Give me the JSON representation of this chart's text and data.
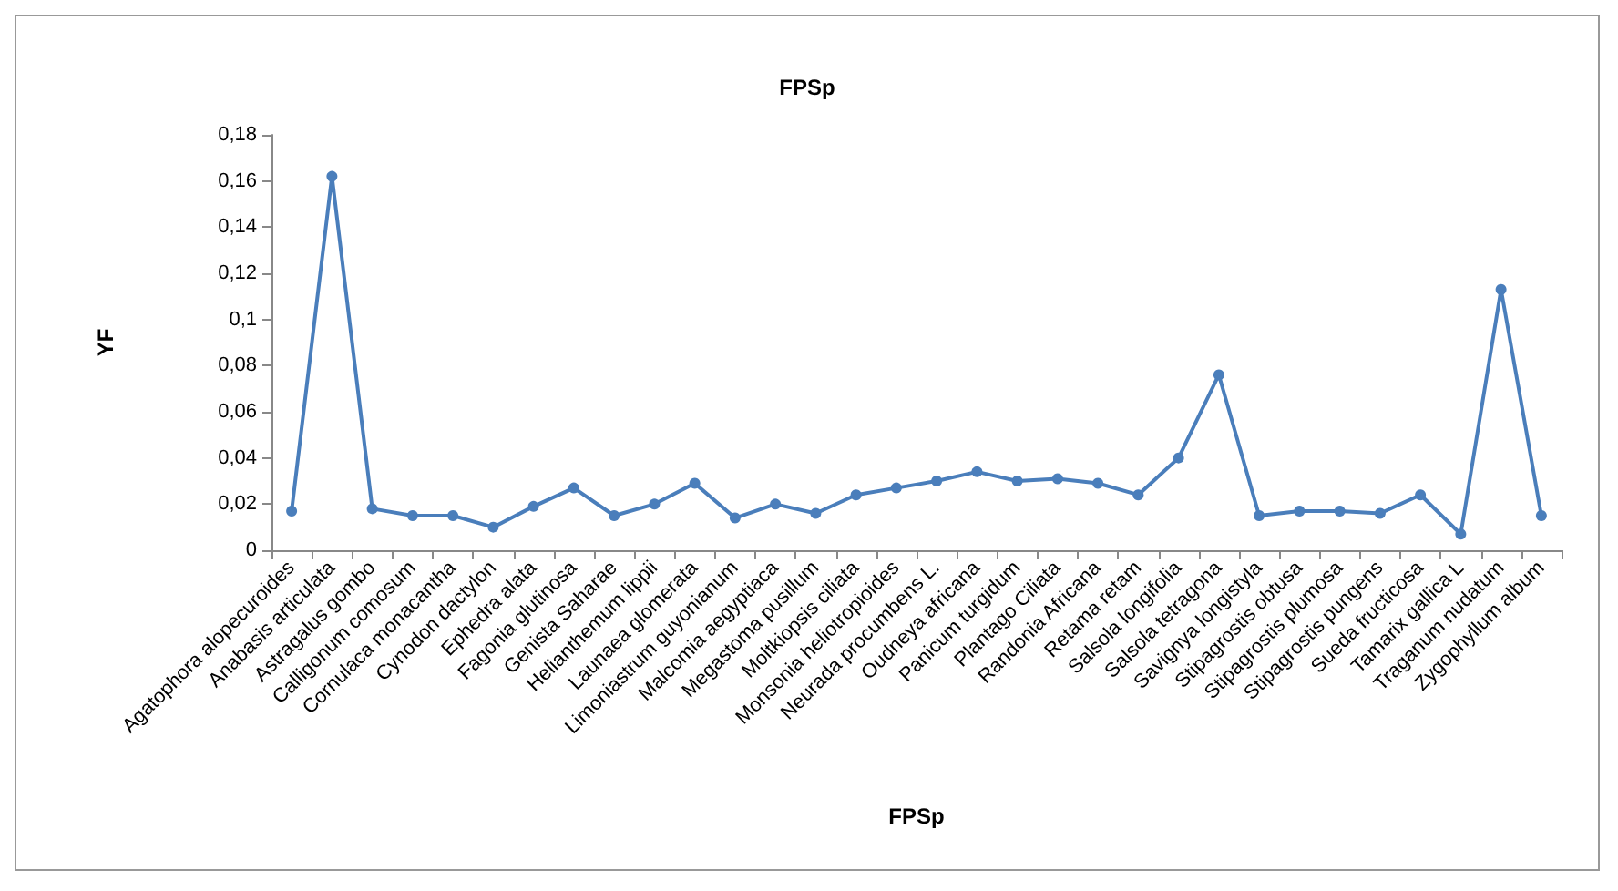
{
  "chart_data": {
    "type": "line",
    "title": "FPSp",
    "xlabel": "FPSp",
    "ylabel": "YF",
    "categories": [
      "Agatophora alopecuroides",
      "Anabasis articulata",
      "Astragalus gombo",
      "Calligonum comosum",
      "Cornulaca monacantha",
      "Cynodon dactylon",
      "Ephedra alata",
      "Fagonia glutinosa",
      "Genista Saharae",
      "Helianthemum lippii",
      "Launaea glomerata",
      "Limoniastrum guyonianum",
      "Malcomia aegyptiaca",
      "Megastoma pusillum",
      "Moltkiopsis ciliata",
      "Monsonia heliotropioides",
      "Neurada procumbens L.",
      "Oudneya africana",
      "Panicum turgidum",
      "Plantago Ciliata",
      "Randonia Africana",
      "Retama retam",
      "Salsola longifolia",
      "Salsola tetragona",
      "Savignya longistyla",
      "Stipagrostis obtusa",
      "Stipagrostis plumosa",
      "Stipagrostis pungens",
      "Sueda fructicosa",
      "Tamarix gallica L",
      "Traganum nudatum",
      "Zygophyllum album"
    ],
    "series": [
      {
        "color": "#4a7ebb",
        "values": [
          0.017,
          0.162,
          0.018,
          0.015,
          0.015,
          0.01,
          0.019,
          0.027,
          0.015,
          0.02,
          0.029,
          0.014,
          0.02,
          0.016,
          0.024,
          0.027,
          0.03,
          0.034,
          0.03,
          0.031,
          0.029,
          0.024,
          0.04,
          0.076,
          0.015,
          0.017,
          0.017,
          0.016,
          0.024,
          0.007,
          0.113,
          0.015
        ]
      }
    ],
    "ylim": [
      0,
      0.18
    ],
    "yticks": [
      0,
      {
        "value": 0.02,
        "label": "0,02"
      },
      {
        "value": 0.04,
        "label": "0,04"
      },
      {
        "value": 0.06,
        "label": "0,06"
      },
      {
        "value": 0.08,
        "label": "0,08"
      },
      {
        "value": 0.1,
        "label": "0,1"
      },
      {
        "value": 0.12,
        "label": "0,12"
      },
      {
        "value": 0.14,
        "label": "0,14"
      },
      {
        "value": 0.16,
        "label": "0,16"
      },
      {
        "value": 0.18,
        "label": "0,18"
      }
    ],
    "grid": false,
    "marker": "circle",
    "line_style": "solid"
  }
}
